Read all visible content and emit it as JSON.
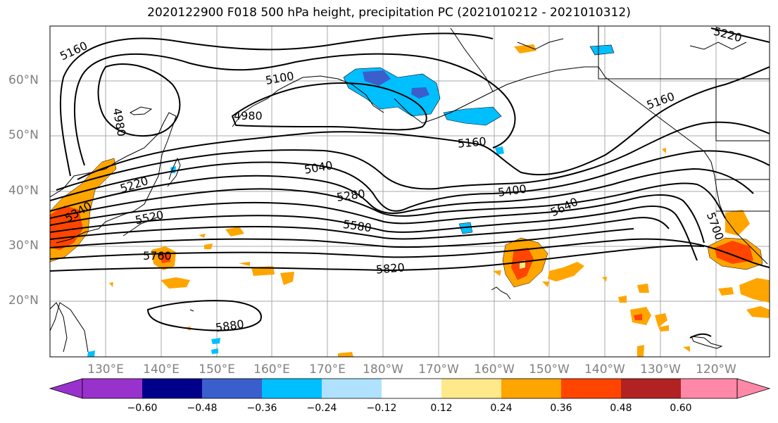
{
  "title": "2020122900 F018 500 hPa height, precipitation PC (2021010212 - 2021010312)",
  "lat_labels": [
    "60°N",
    "50°N",
    "40°N",
    "30°N",
    "20°N"
  ],
  "lon_labels": [
    "130°E",
    "140°E",
    "150°E",
    "160°E",
    "170°E",
    "180°W",
    "170°W",
    "160°W",
    "150°W",
    "140°W",
    "130°W",
    "120°W"
  ],
  "contour_labels": [
    "5160",
    "5100",
    "4980",
    "4980",
    "5160",
    "5040",
    "5220",
    "5280",
    "5400",
    "5340",
    "5520",
    "5580",
    "5640",
    "5700",
    "5760",
    "5820",
    "5880",
    "5220",
    "5160"
  ],
  "colorbar": {
    "tick_labels": [
      "−0.60",
      "−0.48",
      "−0.36",
      "−0.24",
      "−0.12",
      "0.12",
      "0.24",
      "0.36",
      "0.48",
      "0.60"
    ],
    "colors": [
      "#9932cc",
      "#00008b",
      "#3a5fcd",
      "#00bfff",
      "#b0e2ff",
      "#ffffff",
      "#ffe98a",
      "#ffa500",
      "#ff4500",
      "#b22222",
      "#ff88a8"
    ]
  }
}
